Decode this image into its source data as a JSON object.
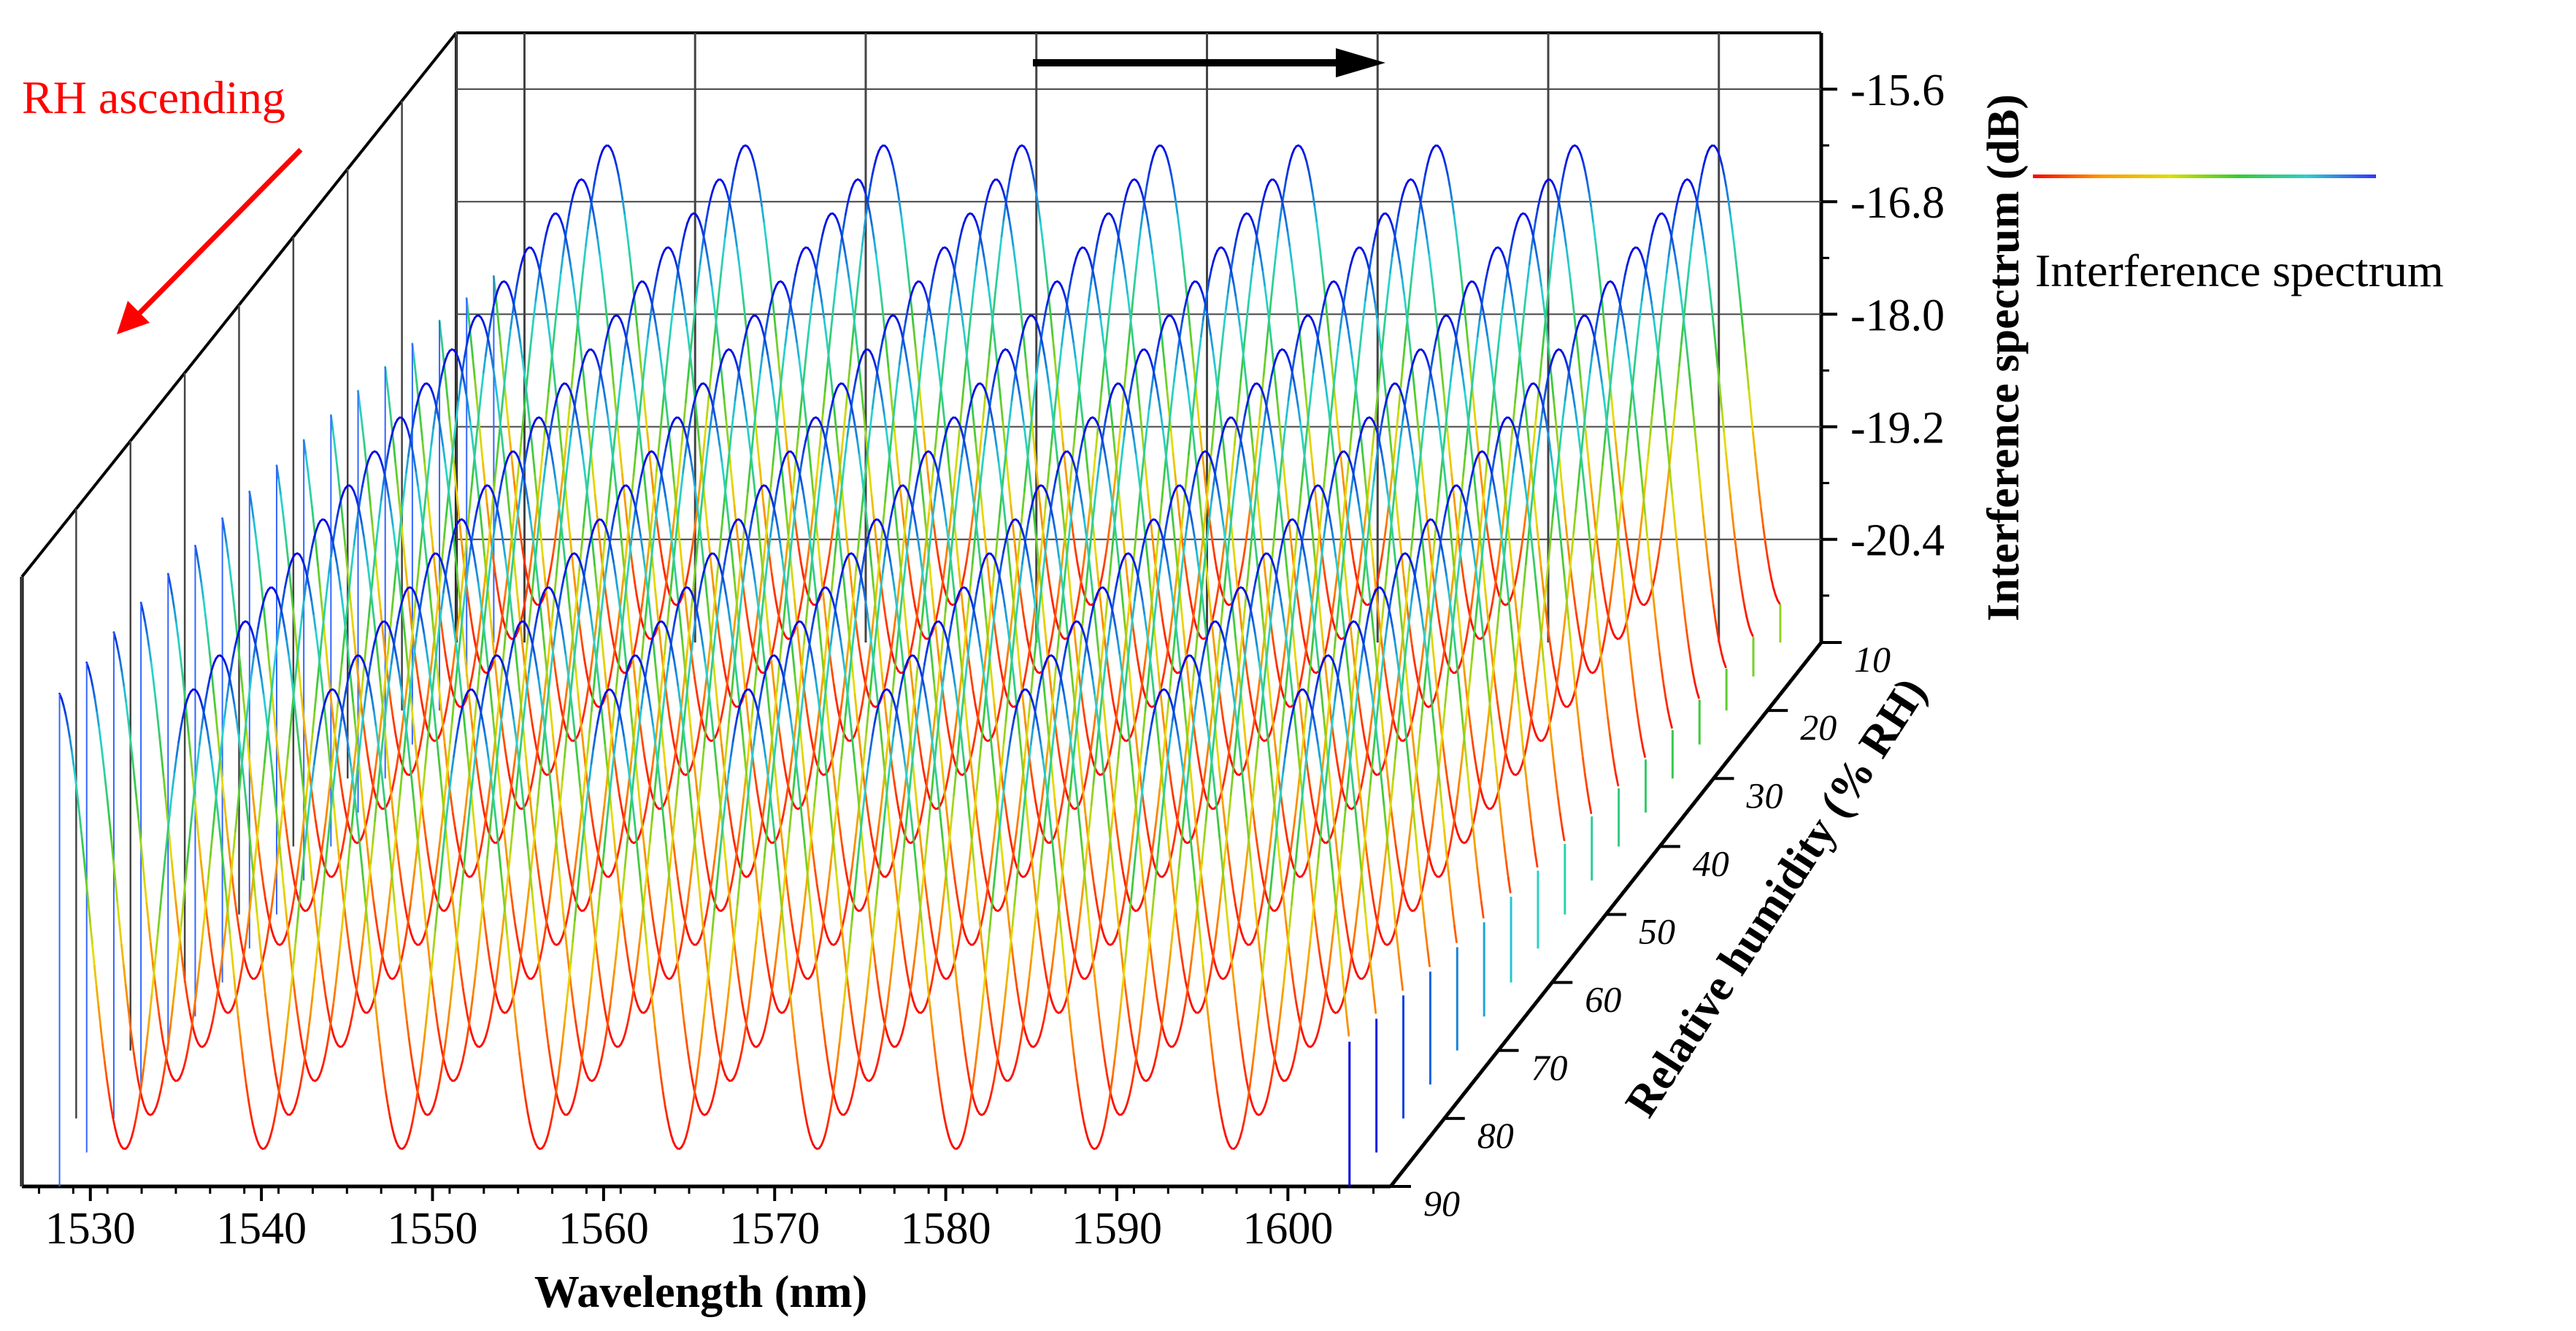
{
  "chart_data": {
    "type": "line",
    "title": "",
    "xlabel": "Wavelength (nm)",
    "ylabel": "Interference spectrum (dB)",
    "zlabel": "Relative humidity (% RH)",
    "xlim": [
      1526,
      1606
    ],
    "ylim": [
      -21.5,
      -15.0
    ],
    "zlim": [
      10,
      90
    ],
    "x_ticks": [
      "1530",
      "1540",
      "1550",
      "1560",
      "1570",
      "1580",
      "1590",
      "1600"
    ],
    "y_ticks": [
      "-15.6",
      "-16.8",
      "-18.0",
      "-19.2",
      "-20.4"
    ],
    "z_ticks": [
      "10",
      "20",
      "30",
      "40",
      "50",
      "60",
      "70",
      "80",
      "90"
    ],
    "series_count": 17,
    "rh_values": [
      90,
      85,
      80,
      75,
      70,
      65,
      60,
      55,
      50,
      45,
      40,
      35,
      30,
      25,
      20,
      15,
      10
    ],
    "fringe_period_nm": 8.1,
    "dip_wavelengths_at_90RH_nm": [
      1532.0,
      1540.0,
      1548.1,
      1556.2,
      1564.3,
      1572.3,
      1580.4,
      1588.5,
      1596.6
    ],
    "dip_shift_nm_per_RH": 0.015,
    "peak_level_dB": -16.2,
    "dip_level_dB": -21.1,
    "colormap": "red-orange-yellow-green-cyan-blue (bottom to top)",
    "legend": {
      "entries": [
        {
          "label": "Interference spectrum"
        }
      ],
      "position": "top-right"
    },
    "annotations": [
      {
        "text": "RH ascending",
        "color": "#ff0000",
        "position": "top-left"
      }
    ]
  }
}
